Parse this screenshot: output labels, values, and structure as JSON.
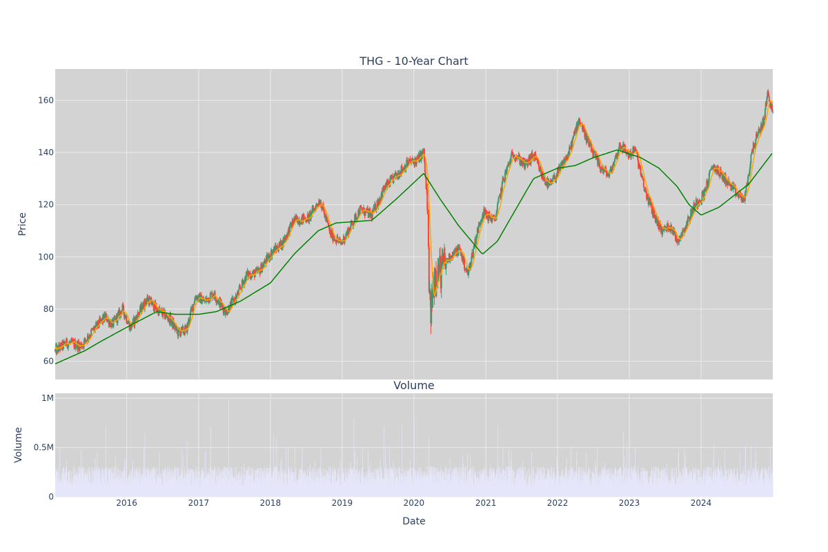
{
  "chart_data": [
    {
      "type": "candlestick",
      "title": "THG - 10-Year Chart",
      "xlabel": "",
      "ylabel": "Price",
      "ylim": [
        53,
        172
      ],
      "yticks": [
        60,
        80,
        100,
        120,
        140,
        160
      ],
      "xlim": [
        "2015-01-02",
        "2024-12-31"
      ],
      "xticks": [
        "2016",
        "2017",
        "2018",
        "2019",
        "2020",
        "2021",
        "2022",
        "2023",
        "2024"
      ],
      "grid": true,
      "background": "#d3d3d3",
      "colors": {
        "up": "#3d9970",
        "down": "#ff4136",
        "ma_short": "#ffa500",
        "ma_long": "#008000"
      },
      "price_path": [
        [
          "2015-01-02",
          64
        ],
        [
          "2015-03-01",
          67
        ],
        [
          "2015-05-15",
          66
        ],
        [
          "2015-07-15",
          72
        ],
        [
          "2015-09-15",
          77
        ],
        [
          "2015-10-20",
          74
        ],
        [
          "2015-12-10",
          80
        ],
        [
          "2016-01-20",
          73
        ],
        [
          "2016-04-15",
          84
        ],
        [
          "2016-06-01",
          80
        ],
        [
          "2016-08-10",
          76
        ],
        [
          "2016-09-15",
          71
        ],
        [
          "2016-10-30",
          72
        ],
        [
          "2016-12-15",
          85
        ],
        [
          "2017-02-01",
          83
        ],
        [
          "2017-03-15",
          86
        ],
        [
          "2017-05-20",
          79
        ],
        [
          "2017-07-15",
          85
        ],
        [
          "2017-09-01",
          93
        ],
        [
          "2017-10-30",
          94
        ],
        [
          "2018-01-10",
          102
        ],
        [
          "2018-03-01",
          105
        ],
        [
          "2018-05-01",
          114
        ],
        [
          "2018-07-15",
          115
        ],
        [
          "2018-09-10",
          122
        ],
        [
          "2018-11-01",
          109
        ],
        [
          "2018-12-25",
          105
        ],
        [
          "2019-02-01",
          110
        ],
        [
          "2019-04-01",
          118
        ],
        [
          "2019-06-01",
          116
        ],
        [
          "2019-08-01",
          126
        ],
        [
          "2019-10-01",
          131
        ],
        [
          "2019-12-01",
          136
        ],
        [
          "2020-01-15",
          137
        ],
        [
          "2020-02-20",
          140
        ],
        [
          "2020-03-10",
          118
        ],
        [
          "2020-03-23",
          76
        ],
        [
          "2020-04-15",
          94
        ],
        [
          "2020-05-20",
          95
        ],
        [
          "2020-07-01",
          100
        ],
        [
          "2020-08-20",
          103
        ],
        [
          "2020-10-01",
          93
        ],
        [
          "2020-11-10",
          107
        ],
        [
          "2020-12-15",
          117
        ],
        [
          "2021-02-15",
          114
        ],
        [
          "2021-04-01",
          130
        ],
        [
          "2021-05-20",
          140
        ],
        [
          "2021-07-20",
          135
        ],
        [
          "2021-09-01",
          139
        ],
        [
          "2021-10-15",
          131
        ],
        [
          "2021-11-20",
          127
        ],
        [
          "2022-01-01",
          132
        ],
        [
          "2022-03-01",
          140
        ],
        [
          "2022-04-20",
          153
        ],
        [
          "2022-06-15",
          142
        ],
        [
          "2022-08-01",
          135
        ],
        [
          "2022-09-20",
          131
        ],
        [
          "2022-11-15",
          143
        ],
        [
          "2022-12-31",
          139
        ],
        [
          "2023-02-01",
          141
        ],
        [
          "2023-03-15",
          127
        ],
        [
          "2023-05-01",
          117
        ],
        [
          "2023-06-15",
          110
        ],
        [
          "2023-08-01",
          112
        ],
        [
          "2023-09-01",
          106
        ],
        [
          "2023-10-15",
          112
        ],
        [
          "2023-12-01",
          120
        ],
        [
          "2024-01-15",
          124
        ],
        [
          "2024-03-01",
          135
        ],
        [
          "2024-05-01",
          130
        ],
        [
          "2024-07-01",
          124
        ],
        [
          "2024-08-10",
          122
        ],
        [
          "2024-09-20",
          142
        ],
        [
          "2024-11-15",
          152
        ],
        [
          "2024-12-05",
          163
        ],
        [
          "2024-12-31",
          155
        ]
      ],
      "ma_long_path": [
        [
          "2015-01-02",
          59
        ],
        [
          "2015-06-01",
          64
        ],
        [
          "2015-09-01",
          68
        ],
        [
          "2016-01-01",
          73
        ],
        [
          "2016-06-01",
          79
        ],
        [
          "2016-09-01",
          78
        ],
        [
          "2017-01-01",
          78
        ],
        [
          "2017-04-01",
          79
        ],
        [
          "2017-08-01",
          83
        ],
        [
          "2018-01-01",
          90
        ],
        [
          "2018-05-01",
          101
        ],
        [
          "2018-09-01",
          110
        ],
        [
          "2018-12-01",
          113
        ],
        [
          "2019-06-01",
          114
        ],
        [
          "2019-10-01",
          122
        ],
        [
          "2020-02-20",
          132
        ],
        [
          "2020-05-15",
          122
        ],
        [
          "2020-08-15",
          112
        ],
        [
          "2020-12-15",
          101
        ],
        [
          "2021-03-01",
          106
        ],
        [
          "2021-07-01",
          122
        ],
        [
          "2021-09-01",
          130
        ],
        [
          "2022-01-01",
          134
        ],
        [
          "2022-04-01",
          135
        ],
        [
          "2022-07-01",
          138
        ],
        [
          "2022-11-01",
          141
        ],
        [
          "2023-03-01",
          138
        ],
        [
          "2023-06-01",
          134
        ],
        [
          "2023-09-01",
          127
        ],
        [
          "2023-11-01",
          120
        ],
        [
          "2024-01-01",
          116
        ],
        [
          "2024-04-01",
          119
        ],
        [
          "2024-09-01",
          128
        ],
        [
          "2024-12-31",
          140
        ]
      ]
    },
    {
      "type": "bar",
      "title": "Volume",
      "xlabel": "Date",
      "ylabel": "Volume",
      "ylim": [
        0,
        1050000
      ],
      "ytick_labels": [
        "0",
        "0.5M",
        "1M"
      ],
      "yticks": [
        0,
        500000,
        1000000
      ],
      "xticks": [
        "2016",
        "2017",
        "2018",
        "2019",
        "2020",
        "2021",
        "2022",
        "2023",
        "2024"
      ],
      "grid": true,
      "bar_color": "#e6e6fa",
      "typical_volume": 200000,
      "peaks": [
        [
          "2015-09-15",
          720000
        ],
        [
          "2016-04-01",
          640000
        ],
        [
          "2016-11-01",
          560000
        ],
        [
          "2017-03-01",
          720000
        ],
        [
          "2017-06-01",
          1000000
        ],
        [
          "2018-01-15",
          620000
        ],
        [
          "2018-02-01",
          600000
        ],
        [
          "2019-03-01",
          800000
        ],
        [
          "2019-08-01",
          720000
        ],
        [
          "2019-11-01",
          730000
        ],
        [
          "2020-01-01",
          800000
        ],
        [
          "2020-03-15",
          600000
        ],
        [
          "2021-03-01",
          720000
        ],
        [
          "2022-12-01",
          660000
        ]
      ]
    }
  ]
}
